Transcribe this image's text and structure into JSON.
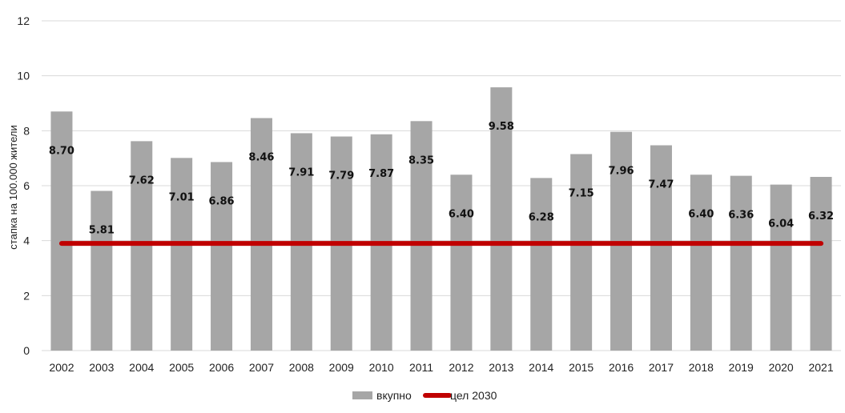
{
  "chart_data": {
    "type": "bar",
    "title": "",
    "xlabel": "",
    "ylabel": "стапка на 100.000 жители",
    "ylim": [
      0,
      12
    ],
    "yticks": [
      0,
      2,
      4,
      6,
      8,
      10,
      12
    ],
    "grid": true,
    "categories": [
      "2002",
      "2003",
      "2004",
      "2005",
      "2006",
      "2007",
      "2008",
      "2009",
      "2010",
      "2011",
      "2012",
      "2013",
      "2014",
      "2015",
      "2016",
      "2017",
      "2018",
      "2019",
      "2020",
      "2021"
    ],
    "series": [
      {
        "name": "вкупно",
        "type": "bar",
        "color": "#a6a6a6",
        "values": [
          8.7,
          5.81,
          7.62,
          7.01,
          6.86,
          8.46,
          7.91,
          7.79,
          7.87,
          8.35,
          6.4,
          9.58,
          6.28,
          7.15,
          7.96,
          7.47,
          6.4,
          6.36,
          6.04,
          6.32
        ],
        "labels": [
          "8.70",
          "5.81",
          "7.62",
          "7.01",
          "6.86",
          "8.46",
          "7.91",
          "7.79",
          "7.87",
          "8.35",
          "6.40",
          "9.58",
          "6.28",
          "7.15",
          "7.96",
          "7.47",
          "6.40",
          "6.36",
          "6.04",
          "6.32"
        ]
      },
      {
        "name": "цел 2030",
        "type": "line",
        "color": "#c00000",
        "values": [
          3.9,
          3.9,
          3.9,
          3.9,
          3.9,
          3.9,
          3.9,
          3.9,
          3.9,
          3.9,
          3.9,
          3.9,
          3.9,
          3.9,
          3.9,
          3.9,
          3.9,
          3.9,
          3.9,
          3.9
        ]
      }
    ],
    "legend": {
      "position": "bottom"
    }
  }
}
